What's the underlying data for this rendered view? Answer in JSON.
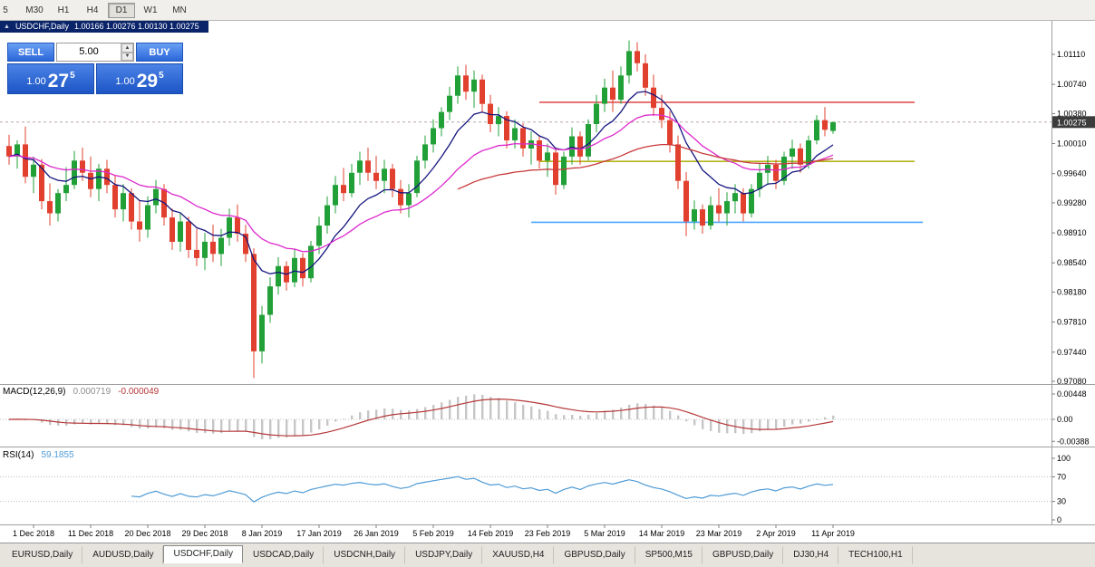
{
  "toolbar": {
    "timeframes": [
      {
        "label": "5"
      },
      {
        "label": "M30"
      },
      {
        "label": "H1"
      },
      {
        "label": "H4"
      },
      {
        "label": "D1"
      },
      {
        "label": "W1"
      },
      {
        "label": "MN"
      }
    ],
    "active_timeframe": "D1"
  },
  "window": {
    "title_symbol": "USDCHF,Daily",
    "title_ohlc": "1.00166 1.00276 1.00130 1.00275"
  },
  "trade_panel": {
    "sell_label": "SELL",
    "buy_label": "BUY",
    "volume": "5.00",
    "sell_price_head": "1.00",
    "sell_price_big": "27",
    "sell_price_sup": "5",
    "buy_price_head": "1.00",
    "buy_price_big": "29",
    "buy_price_sup": "5"
  },
  "indicators": {
    "macd": {
      "label": "MACD(12,26,9)",
      "value_main": "0.000719",
      "value_signal": "-0.000049",
      "axis": [
        "0.00448",
        "0.00",
        "-0.00388"
      ]
    },
    "rsi": {
      "label": "RSI(14)",
      "value": "59.1855",
      "axis": [
        "100",
        "70",
        "30",
        "0"
      ],
      "levels": [
        70,
        30
      ]
    }
  },
  "tabs": [
    {
      "label": "EURUSD,Daily"
    },
    {
      "label": "AUDUSD,Daily"
    },
    {
      "label": "USDCHF,Daily",
      "active": true
    },
    {
      "label": "USDCAD,Daily"
    },
    {
      "label": "USDCNH,Daily"
    },
    {
      "label": "USDJPY,Daily"
    },
    {
      "label": "XAUUSD,H4"
    },
    {
      "label": "GBPUSD,Daily"
    },
    {
      "label": "SP500,M15"
    },
    {
      "label": "GBPUSD,Daily"
    },
    {
      "label": "DJ30,H4"
    },
    {
      "label": "TECH100,H1"
    }
  ],
  "chart_data": {
    "type": "candlestick",
    "symbol": "USDCHF",
    "timeframe": "Daily",
    "current_price": 1.00275,
    "price_box_color": "#3c3c3c",
    "up_color": "#22a038",
    "down_color": "#e2402e",
    "price_ticks": [
      "1.01110",
      "1.00740",
      "1.00380",
      "1.00010",
      "0.99640",
      "0.99280",
      "0.98910",
      "0.98540",
      "0.98180",
      "0.97810",
      "0.97440",
      "0.97080"
    ],
    "x_ticks": [
      {
        "label": "1 Dec 2018",
        "i": 3
      },
      {
        "label": "11 Dec 2018",
        "i": 10
      },
      {
        "label": "20 Dec 2018",
        "i": 17
      },
      {
        "label": "29 Dec 2018",
        "i": 24
      },
      {
        "label": "8 Jan 2019",
        "i": 31
      },
      {
        "label": "17 Jan 2019",
        "i": 38
      },
      {
        "label": "26 Jan 2019",
        "i": 45
      },
      {
        "label": "5 Feb 2019",
        "i": 52
      },
      {
        "label": "14 Feb 2019",
        "i": 59
      },
      {
        "label": "23 Feb 2019",
        "i": 66
      },
      {
        "label": "5 Mar 2019",
        "i": 73
      },
      {
        "label": "14 Mar 2019",
        "i": 80
      },
      {
        "label": "23 Mar 2019",
        "i": 87
      },
      {
        "label": "2 Apr 2019",
        "i": 94
      },
      {
        "label": "11 Apr 2019",
        "i": 101
      }
    ],
    "hlines": [
      {
        "price": 1.0052,
        "i1": 65,
        "i2": 111,
        "color": "#e05252"
      },
      {
        "price": 0.9979,
        "i1": 65,
        "i2": 111,
        "color": "#b3b31a"
      },
      {
        "price": 0.9904,
        "i1": 64,
        "i2": 112,
        "color": "#4da6ff"
      }
    ],
    "moving_averages": [
      {
        "type": "ema",
        "period": 9,
        "color": "#15157f",
        "start": 0
      },
      {
        "type": "ema",
        "period": 22,
        "color": "#dd29cc",
        "start": 0
      },
      {
        "type": "ema",
        "period": 55,
        "color": "#c83a3a",
        "start": 55
      }
    ],
    "macd": {
      "fast": 12,
      "slow": 26,
      "signal": 9,
      "hist_color": "#c6c6c6",
      "signal_color": "#b53838"
    },
    "rsi": {
      "period": 14,
      "color": "#4f9bd5"
    },
    "candles": [
      [
        0.9998,
        1.0012,
        0.9975,
        0.9985
      ],
      [
        0.9985,
        1.0005,
        0.997,
        1.0
      ],
      [
        1.0,
        1.0022,
        0.9952,
        0.996
      ],
      [
        0.996,
        0.9985,
        0.994,
        0.9975
      ],
      [
        0.9975,
        0.9982,
        0.992,
        0.993
      ],
      [
        0.993,
        0.9952,
        0.99,
        0.9915
      ],
      [
        0.9915,
        0.9945,
        0.9905,
        0.994
      ],
      [
        0.994,
        0.9972,
        0.993,
        0.995
      ],
      [
        0.995,
        0.9992,
        0.9945,
        0.998
      ],
      [
        0.998,
        0.9996,
        0.9955,
        0.9965
      ],
      [
        0.9965,
        0.9985,
        0.9935,
        0.9945
      ],
      [
        0.9945,
        0.9976,
        0.993,
        0.997
      ],
      [
        0.997,
        0.9981,
        0.994,
        0.995
      ],
      [
        0.995,
        0.9961,
        0.991,
        0.992
      ],
      [
        0.992,
        0.9951,
        0.9905,
        0.994
      ],
      [
        0.994,
        0.9946,
        0.9895,
        0.9905
      ],
      [
        0.9905,
        0.9931,
        0.988,
        0.9895
      ],
      [
        0.9895,
        0.9936,
        0.9885,
        0.9925
      ],
      [
        0.9925,
        0.9956,
        0.9915,
        0.9945
      ],
      [
        0.9945,
        0.9951,
        0.99,
        0.991
      ],
      [
        0.991,
        0.9921,
        0.987,
        0.988
      ],
      [
        0.988,
        0.9916,
        0.9868,
        0.9905
      ],
      [
        0.9905,
        0.9911,
        0.986,
        0.987
      ],
      [
        0.987,
        0.9896,
        0.985,
        0.986
      ],
      [
        0.986,
        0.9891,
        0.9845,
        0.988
      ],
      [
        0.988,
        0.9901,
        0.9855,
        0.9865
      ],
      [
        0.9865,
        0.9896,
        0.985,
        0.9885
      ],
      [
        0.9885,
        0.9921,
        0.9875,
        0.991
      ],
      [
        0.991,
        0.9926,
        0.988,
        0.989
      ],
      [
        0.989,
        0.9901,
        0.9855,
        0.9865
      ],
      [
        0.9865,
        0.9872,
        0.9712,
        0.9745
      ],
      [
        0.9745,
        0.9801,
        0.973,
        0.979
      ],
      [
        0.979,
        0.9836,
        0.978,
        0.9825
      ],
      [
        0.9825,
        0.9861,
        0.9815,
        0.985
      ],
      [
        0.985,
        0.9856,
        0.982,
        0.983
      ],
      [
        0.983,
        0.9871,
        0.9824,
        0.986
      ],
      [
        0.986,
        0.9866,
        0.9825,
        0.9835
      ],
      [
        0.9835,
        0.9881,
        0.983,
        0.9875
      ],
      [
        0.9875,
        0.9911,
        0.9865,
        0.99
      ],
      [
        0.99,
        0.9936,
        0.989,
        0.9925
      ],
      [
        0.9925,
        0.9961,
        0.9915,
        0.995
      ],
      [
        0.995,
        0.9971,
        0.993,
        0.994
      ],
      [
        0.994,
        0.9976,
        0.9935,
        0.9965
      ],
      [
        0.9965,
        0.9991,
        0.995,
        0.998
      ],
      [
        0.998,
        0.9996,
        0.9955,
        0.9965
      ],
      [
        0.9965,
        0.9986,
        0.9945,
        0.9955
      ],
      [
        0.9955,
        0.9981,
        0.994,
        0.997
      ],
      [
        0.997,
        0.9976,
        0.9935,
        0.9945
      ],
      [
        0.9945,
        0.9956,
        0.9915,
        0.9925
      ],
      [
        0.9925,
        0.9951,
        0.991,
        0.994
      ],
      [
        0.994,
        0.9986,
        0.9935,
        0.998
      ],
      [
        0.998,
        1.0011,
        0.997,
        1.0
      ],
      [
        1.0,
        1.0031,
        0.999,
        1.002
      ],
      [
        1.002,
        1.0046,
        1.001,
        1.004
      ],
      [
        1.004,
        1.0071,
        1.003,
        1.006
      ],
      [
        1.006,
        1.0096,
        1.005,
        1.0085
      ],
      [
        1.0085,
        1.0098,
        1.0055,
        1.0065
      ],
      [
        1.0065,
        1.0091,
        1.0045,
        1.008
      ],
      [
        1.008,
        1.0086,
        1.004,
        1.005
      ],
      [
        1.005,
        1.0061,
        1.0015,
        1.0025
      ],
      [
        1.0025,
        1.0046,
        1.001,
        1.0035
      ],
      [
        1.0035,
        1.0041,
        0.9995,
        1.0005
      ],
      [
        1.0005,
        1.0031,
        0.9995,
        1.002
      ],
      [
        1.002,
        1.0026,
        0.9985,
        0.9995
      ],
      [
        0.9995,
        1.0016,
        0.9975,
        1.0005
      ],
      [
        1.0005,
        1.0011,
        0.997,
        0.998
      ],
      [
        0.998,
        1.0001,
        0.996,
        0.999
      ],
      [
        0.999,
        0.9996,
        0.9938,
        0.995
      ],
      [
        0.995,
        0.9991,
        0.9945,
        0.9985
      ],
      [
        0.9985,
        1.0021,
        0.9975,
        1.001
      ],
      [
        1.001,
        1.0016,
        0.9975,
        0.9985
      ],
      [
        0.9985,
        1.0031,
        0.998,
        1.0025
      ],
      [
        1.0025,
        1.0061,
        1.0015,
        1.005
      ],
      [
        1.005,
        1.0081,
        1.004,
        1.007
      ],
      [
        1.007,
        1.0091,
        1.004,
        1.0055
      ],
      [
        1.0055,
        1.0096,
        1.005,
        1.0085
      ],
      [
        1.0085,
        1.0128,
        1.0075,
        1.0115
      ],
      [
        1.0115,
        1.0126,
        1.009,
        1.01
      ],
      [
        1.01,
        1.0111,
        1.006,
        1.007
      ],
      [
        1.007,
        1.0086,
        1.0035,
        1.0045
      ],
      [
        1.0045,
        1.0061,
        1.002,
        1.003
      ],
      [
        1.003,
        1.0041,
        0.999,
        1.0
      ],
      [
        1.0,
        1.0011,
        0.9945,
        0.9955
      ],
      [
        0.9955,
        0.9966,
        0.9887,
        0.9905
      ],
      [
        0.9905,
        0.9931,
        0.9895,
        0.992
      ],
      [
        0.992,
        0.9926,
        0.989,
        0.99
      ],
      [
        0.99,
        0.9936,
        0.9895,
        0.9925
      ],
      [
        0.9925,
        0.9946,
        0.9905,
        0.9915
      ],
      [
        0.9915,
        0.9941,
        0.99,
        0.993
      ],
      [
        0.993,
        0.9951,
        0.9915,
        0.994
      ],
      [
        0.994,
        0.9946,
        0.9905,
        0.9915
      ],
      [
        0.9915,
        0.9951,
        0.991,
        0.9945
      ],
      [
        0.9945,
        0.9976,
        0.9935,
        0.9965
      ],
      [
        0.9965,
        0.9986,
        0.995,
        0.9975
      ],
      [
        0.9975,
        0.9981,
        0.9945,
        0.9955
      ],
      [
        0.9955,
        0.9991,
        0.995,
        0.9985
      ],
      [
        0.9985,
        1.0006,
        0.997,
        0.9995
      ],
      [
        0.9995,
        1.0001,
        0.9965,
        0.9975
      ],
      [
        0.9975,
        1.0011,
        0.997,
        1.0005
      ],
      [
        1.0005,
        1.0036,
        1.0,
        1.003
      ],
      [
        1.003,
        1.0046,
        1.001,
        1.0018
      ],
      [
        1.00166,
        1.00276,
        1.0013,
        1.00275
      ]
    ]
  }
}
